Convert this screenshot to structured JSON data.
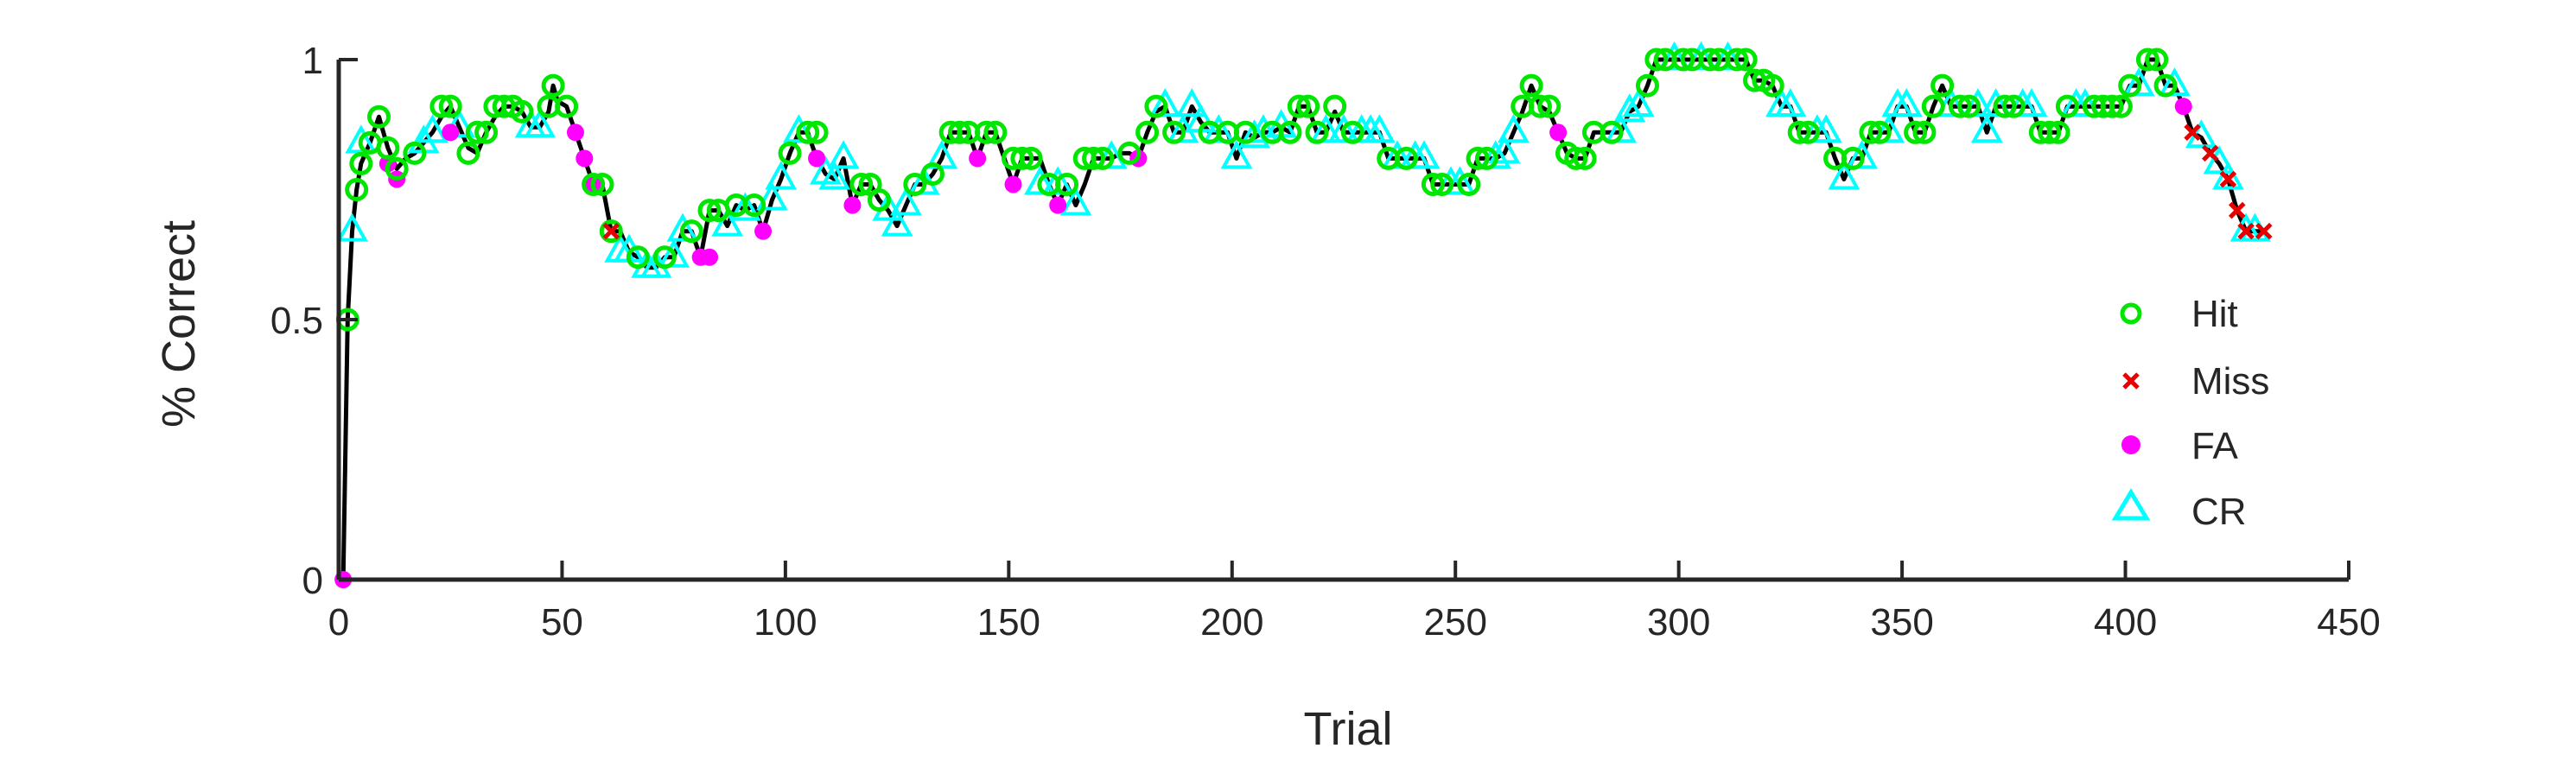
{
  "chart_data": {
    "type": "line",
    "xlabel": "Trial",
    "ylabel": "% Correct",
    "xlim": [
      0,
      450
    ],
    "ylim": [
      0,
      1
    ],
    "xticks": [
      "0",
      "50",
      "100",
      "150",
      "200",
      "250",
      "300",
      "350",
      "400",
      "450"
    ],
    "yticks": [
      "0",
      "0.5",
      "1"
    ],
    "grid": false,
    "legend_position": "right",
    "line_color": "#000000",
    "series": [
      {
        "name": "Hit",
        "marker": "open-circle",
        "color": "#00e600"
      },
      {
        "name": "Miss",
        "marker": "x",
        "color": "#e60000"
      },
      {
        "name": "FA",
        "marker": "filled-circle",
        "color": "#ff00ff"
      },
      {
        "name": "CR",
        "marker": "open-triangle",
        "color": "#00ffff"
      }
    ],
    "curve": [
      [
        1,
        0
      ],
      [
        2,
        0.5
      ],
      [
        3,
        0.67
      ],
      [
        4,
        0.75
      ],
      [
        5,
        0.8
      ],
      [
        7,
        0.84
      ],
      [
        9,
        0.89
      ],
      [
        11,
        0.83
      ],
      [
        13,
        0.79
      ],
      [
        15,
        0.81
      ],
      [
        17,
        0.82
      ],
      [
        19,
        0.84
      ],
      [
        21,
        0.86
      ],
      [
        23,
        0.89
      ],
      [
        25,
        0.91
      ],
      [
        27,
        0.87
      ],
      [
        29,
        0.83
      ],
      [
        31,
        0.82
      ],
      [
        33,
        0.86
      ],
      [
        35,
        0.89
      ],
      [
        37,
        0.91
      ],
      [
        39,
        0.91
      ],
      [
        41,
        0.9
      ],
      [
        43,
        0.87
      ],
      [
        45,
        0.87
      ],
      [
        47,
        0.9
      ],
      [
        48,
        0.95
      ],
      [
        49,
        0.92
      ],
      [
        51,
        0.91
      ],
      [
        53,
        0.86
      ],
      [
        55,
        0.81
      ],
      [
        57,
        0.76
      ],
      [
        59,
        0.76
      ],
      [
        61,
        0.67
      ],
      [
        63,
        0.67
      ],
      [
        65,
        0.63
      ],
      [
        67,
        0.62
      ],
      [
        69,
        0.6
      ],
      [
        71,
        0.6
      ],
      [
        73,
        0.62
      ],
      [
        75,
        0.62
      ],
      [
        77,
        0.67
      ],
      [
        79,
        0.67
      ],
      [
        81,
        0.62
      ],
      [
        83,
        0.71
      ],
      [
        85,
        0.71
      ],
      [
        87,
        0.68
      ],
      [
        89,
        0.72
      ],
      [
        91,
        0.71
      ],
      [
        93,
        0.72
      ],
      [
        95,
        0.67
      ],
      [
        97,
        0.73
      ],
      [
        99,
        0.77
      ],
      [
        101,
        0.82
      ],
      [
        103,
        0.86
      ],
      [
        105,
        0.86
      ],
      [
        107,
        0.81
      ],
      [
        109,
        0.78
      ],
      [
        111,
        0.77
      ],
      [
        113,
        0.81
      ],
      [
        115,
        0.72
      ],
      [
        117,
        0.76
      ],
      [
        119,
        0.76
      ],
      [
        121,
        0.73
      ],
      [
        123,
        0.71
      ],
      [
        125,
        0.68
      ],
      [
        127,
        0.72
      ],
      [
        129,
        0.76
      ],
      [
        131,
        0.76
      ],
      [
        133,
        0.78
      ],
      [
        135,
        0.81
      ],
      [
        137,
        0.86
      ],
      [
        139,
        0.86
      ],
      [
        141,
        0.86
      ],
      [
        143,
        0.81
      ],
      [
        145,
        0.86
      ],
      [
        147,
        0.86
      ],
      [
        149,
        0.81
      ],
      [
        151,
        0.76
      ],
      [
        153,
        0.81
      ],
      [
        155,
        0.81
      ],
      [
        157,
        0.81
      ],
      [
        159,
        0.76
      ],
      [
        161,
        0.72
      ],
      [
        163,
        0.76
      ],
      [
        165,
        0.72
      ],
      [
        167,
        0.76
      ],
      [
        169,
        0.81
      ],
      [
        171,
        0.81
      ],
      [
        173,
        0.81
      ],
      [
        175,
        0.82
      ],
      [
        177,
        0.82
      ],
      [
        179,
        0.81
      ],
      [
        181,
        0.86
      ],
      [
        183,
        0.9
      ],
      [
        185,
        0.91
      ],
      [
        187,
        0.86
      ],
      [
        189,
        0.86
      ],
      [
        191,
        0.91
      ],
      [
        193,
        0.88
      ],
      [
        195,
        0.86
      ],
      [
        197,
        0.86
      ],
      [
        199,
        0.86
      ],
      [
        201,
        0.81
      ],
      [
        203,
        0.86
      ],
      [
        205,
        0.85
      ],
      [
        207,
        0.86
      ],
      [
        209,
        0.86
      ],
      [
        211,
        0.87
      ],
      [
        213,
        0.86
      ],
      [
        215,
        0.91
      ],
      [
        217,
        0.91
      ],
      [
        219,
        0.86
      ],
      [
        221,
        0.86
      ],
      [
        223,
        0.9
      ],
      [
        225,
        0.86
      ],
      [
        227,
        0.86
      ],
      [
        229,
        0.86
      ],
      [
        231,
        0.86
      ],
      [
        233,
        0.86
      ],
      [
        235,
        0.81
      ],
      [
        237,
        0.81
      ],
      [
        239,
        0.81
      ],
      [
        241,
        0.81
      ],
      [
        243,
        0.81
      ],
      [
        245,
        0.76
      ],
      [
        247,
        0.76
      ],
      [
        249,
        0.76
      ],
      [
        251,
        0.76
      ],
      [
        253,
        0.76
      ],
      [
        255,
        0.81
      ],
      [
        257,
        0.81
      ],
      [
        259,
        0.81
      ],
      [
        261,
        0.82
      ],
      [
        263,
        0.86
      ],
      [
        265,
        0.9
      ],
      [
        267,
        0.95
      ],
      [
        269,
        0.91
      ],
      [
        271,
        0.9
      ],
      [
        273,
        0.86
      ],
      [
        275,
        0.82
      ],
      [
        277,
        0.81
      ],
      [
        279,
        0.81
      ],
      [
        281,
        0.86
      ],
      [
        283,
        0.86
      ],
      [
        285,
        0.86
      ],
      [
        287,
        0.86
      ],
      [
        289,
        0.9
      ],
      [
        291,
        0.91
      ],
      [
        293,
        0.95
      ],
      [
        295,
        1.0
      ],
      [
        297,
        1.0
      ],
      [
        299,
        1.0
      ],
      [
        301,
        1.0
      ],
      [
        303,
        1.0
      ],
      [
        305,
        1.0
      ],
      [
        307,
        1.0
      ],
      [
        309,
        1.0
      ],
      [
        311,
        1.0
      ],
      [
        313,
        1.0
      ],
      [
        315,
        1.0
      ],
      [
        317,
        0.96
      ],
      [
        319,
        0.96
      ],
      [
        321,
        0.95
      ],
      [
        323,
        0.91
      ],
      [
        325,
        0.91
      ],
      [
        327,
        0.86
      ],
      [
        329,
        0.86
      ],
      [
        331,
        0.86
      ],
      [
        333,
        0.86
      ],
      [
        335,
        0.81
      ],
      [
        337,
        0.77
      ],
      [
        339,
        0.81
      ],
      [
        341,
        0.81
      ],
      [
        343,
        0.86
      ],
      [
        345,
        0.86
      ],
      [
        347,
        0.86
      ],
      [
        349,
        0.91
      ],
      [
        351,
        0.91
      ],
      [
        353,
        0.86
      ],
      [
        355,
        0.86
      ],
      [
        357,
        0.91
      ],
      [
        359,
        0.95
      ],
      [
        361,
        0.91
      ],
      [
        363,
        0.91
      ],
      [
        365,
        0.91
      ],
      [
        367,
        0.91
      ],
      [
        369,
        0.86
      ],
      [
        371,
        0.91
      ],
      [
        373,
        0.91
      ],
      [
        375,
        0.91
      ],
      [
        377,
        0.91
      ],
      [
        379,
        0.91
      ],
      [
        381,
        0.86
      ],
      [
        383,
        0.86
      ],
      [
        385,
        0.86
      ],
      [
        387,
        0.91
      ],
      [
        389,
        0.91
      ],
      [
        391,
        0.91
      ],
      [
        393,
        0.91
      ],
      [
        395,
        0.91
      ],
      [
        397,
        0.91
      ],
      [
        399,
        0.91
      ],
      [
        401,
        0.95
      ],
      [
        403,
        0.95
      ],
      [
        405,
        1.0
      ],
      [
        407,
        1.0
      ],
      [
        409,
        0.95
      ],
      [
        411,
        0.95
      ],
      [
        413,
        0.91
      ],
      [
        415,
        0.86
      ],
      [
        417,
        0.85
      ],
      [
        419,
        0.82
      ],
      [
        421,
        0.8
      ],
      [
        423,
        0.77
      ],
      [
        425,
        0.71
      ],
      [
        427,
        0.67
      ],
      [
        429,
        0.67
      ],
      [
        431,
        0.67
      ]
    ],
    "hit_points": [
      [
        2,
        0.5
      ],
      [
        4,
        0.75
      ],
      [
        5,
        0.8
      ],
      [
        7,
        0.84
      ],
      [
        9,
        0.89
      ],
      [
        11,
        0.83
      ],
      [
        13,
        0.79
      ],
      [
        17,
        0.82
      ],
      [
        23,
        0.91
      ],
      [
        25,
        0.91
      ],
      [
        29,
        0.82
      ],
      [
        31,
        0.86
      ],
      [
        33,
        0.86
      ],
      [
        35,
        0.91
      ],
      [
        37,
        0.91
      ],
      [
        39,
        0.91
      ],
      [
        41,
        0.9
      ],
      [
        47,
        0.91
      ],
      [
        48,
        0.95
      ],
      [
        51,
        0.91
      ],
      [
        57,
        0.76
      ],
      [
        59,
        0.76
      ],
      [
        61,
        0.67
      ],
      [
        67,
        0.62
      ],
      [
        73,
        0.62
      ],
      [
        79,
        0.67
      ],
      [
        83,
        0.71
      ],
      [
        85,
        0.71
      ],
      [
        89,
        0.72
      ],
      [
        93,
        0.72
      ],
      [
        101,
        0.82
      ],
      [
        105,
        0.86
      ],
      [
        107,
        0.86
      ],
      [
        117,
        0.76
      ],
      [
        119,
        0.76
      ],
      [
        121,
        0.73
      ],
      [
        129,
        0.76
      ],
      [
        133,
        0.78
      ],
      [
        137,
        0.86
      ],
      [
        139,
        0.86
      ],
      [
        141,
        0.86
      ],
      [
        145,
        0.86
      ],
      [
        147,
        0.86
      ],
      [
        151,
        0.81
      ],
      [
        153,
        0.81
      ],
      [
        155,
        0.81
      ],
      [
        159,
        0.76
      ],
      [
        163,
        0.76
      ],
      [
        167,
        0.81
      ],
      [
        169,
        0.81
      ],
      [
        171,
        0.81
      ],
      [
        177,
        0.82
      ],
      [
        181,
        0.86
      ],
      [
        183,
        0.91
      ],
      [
        187,
        0.86
      ],
      [
        195,
        0.86
      ],
      [
        199,
        0.86
      ],
      [
        203,
        0.86
      ],
      [
        209,
        0.86
      ],
      [
        213,
        0.86
      ],
      [
        215,
        0.91
      ],
      [
        217,
        0.91
      ],
      [
        219,
        0.86
      ],
      [
        223,
        0.91
      ],
      [
        227,
        0.86
      ],
      [
        235,
        0.81
      ],
      [
        239,
        0.81
      ],
      [
        245,
        0.76
      ],
      [
        247,
        0.76
      ],
      [
        253,
        0.76
      ],
      [
        255,
        0.81
      ],
      [
        257,
        0.81
      ],
      [
        265,
        0.91
      ],
      [
        267,
        0.95
      ],
      [
        269,
        0.91
      ],
      [
        271,
        0.91
      ],
      [
        275,
        0.82
      ],
      [
        277,
        0.81
      ],
      [
        279,
        0.81
      ],
      [
        281,
        0.86
      ],
      [
        285,
        0.86
      ],
      [
        293,
        0.95
      ],
      [
        295,
        1.0
      ],
      [
        297,
        1.0
      ],
      [
        301,
        1.0
      ],
      [
        303,
        1.0
      ],
      [
        307,
        1.0
      ],
      [
        309,
        1.0
      ],
      [
        313,
        1.0
      ],
      [
        315,
        1.0
      ],
      [
        317,
        0.96
      ],
      [
        319,
        0.96
      ],
      [
        321,
        0.95
      ],
      [
        327,
        0.86
      ],
      [
        329,
        0.86
      ],
      [
        335,
        0.81
      ],
      [
        339,
        0.81
      ],
      [
        343,
        0.86
      ],
      [
        345,
        0.86
      ],
      [
        353,
        0.86
      ],
      [
        355,
        0.86
      ],
      [
        357,
        0.91
      ],
      [
        359,
        0.95
      ],
      [
        363,
        0.91
      ],
      [
        365,
        0.91
      ],
      [
        373,
        0.91
      ],
      [
        375,
        0.91
      ],
      [
        381,
        0.86
      ],
      [
        383,
        0.86
      ],
      [
        385,
        0.86
      ],
      [
        387,
        0.91
      ],
      [
        393,
        0.91
      ],
      [
        395,
        0.91
      ],
      [
        397,
        0.91
      ],
      [
        399,
        0.91
      ],
      [
        401,
        0.95
      ],
      [
        405,
        1.0
      ],
      [
        407,
        1.0
      ],
      [
        409,
        0.95
      ]
    ],
    "miss_points": [
      [
        61,
        0.67
      ],
      [
        415,
        0.86
      ],
      [
        419,
        0.82
      ],
      [
        423,
        0.77
      ],
      [
        425,
        0.71
      ],
      [
        427,
        0.67
      ],
      [
        431,
        0.67
      ]
    ],
    "fa_points": [
      [
        1,
        0
      ],
      [
        11,
        0.8
      ],
      [
        13,
        0.77
      ],
      [
        25,
        0.86
      ],
      [
        53,
        0.86
      ],
      [
        55,
        0.81
      ],
      [
        57,
        0.76
      ],
      [
        81,
        0.62
      ],
      [
        83,
        0.62
      ],
      [
        95,
        0.67
      ],
      [
        107,
        0.81
      ],
      [
        115,
        0.72
      ],
      [
        143,
        0.81
      ],
      [
        151,
        0.76
      ],
      [
        161,
        0.72
      ],
      [
        179,
        0.81
      ],
      [
        273,
        0.86
      ],
      [
        413,
        0.91
      ]
    ],
    "cr_points": [
      [
        3,
        0.67
      ],
      [
        5,
        0.84
      ],
      [
        19,
        0.84
      ],
      [
        21,
        0.86
      ],
      [
        27,
        0.87
      ],
      [
        43,
        0.87
      ],
      [
        45,
        0.87
      ],
      [
        63,
        0.63
      ],
      [
        65,
        0.63
      ],
      [
        69,
        0.6
      ],
      [
        71,
        0.6
      ],
      [
        75,
        0.62
      ],
      [
        77,
        0.67
      ],
      [
        87,
        0.68
      ],
      [
        91,
        0.71
      ],
      [
        97,
        0.73
      ],
      [
        99,
        0.77
      ],
      [
        103,
        0.86
      ],
      [
        109,
        0.78
      ],
      [
        111,
        0.77
      ],
      [
        113,
        0.81
      ],
      [
        123,
        0.71
      ],
      [
        125,
        0.68
      ],
      [
        127,
        0.72
      ],
      [
        131,
        0.76
      ],
      [
        135,
        0.81
      ],
      [
        157,
        0.76
      ],
      [
        161,
        0.76
      ],
      [
        165,
        0.72
      ],
      [
        173,
        0.81
      ],
      [
        185,
        0.91
      ],
      [
        189,
        0.86
      ],
      [
        191,
        0.91
      ],
      [
        193,
        0.88
      ],
      [
        197,
        0.86
      ],
      [
        201,
        0.81
      ],
      [
        205,
        0.85
      ],
      [
        207,
        0.86
      ],
      [
        211,
        0.87
      ],
      [
        221,
        0.86
      ],
      [
        225,
        0.86
      ],
      [
        229,
        0.86
      ],
      [
        231,
        0.86
      ],
      [
        233,
        0.86
      ],
      [
        237,
        0.81
      ],
      [
        241,
        0.81
      ],
      [
        243,
        0.81
      ],
      [
        249,
        0.76
      ],
      [
        251,
        0.76
      ],
      [
        259,
        0.81
      ],
      [
        261,
        0.82
      ],
      [
        263,
        0.86
      ],
      [
        287,
        0.86
      ],
      [
        289,
        0.9
      ],
      [
        291,
        0.91
      ],
      [
        299,
        1.0
      ],
      [
        305,
        1.0
      ],
      [
        311,
        1.0
      ],
      [
        323,
        0.91
      ],
      [
        325,
        0.91
      ],
      [
        331,
        0.86
      ],
      [
        333,
        0.86
      ],
      [
        337,
        0.77
      ],
      [
        341,
        0.81
      ],
      [
        347,
        0.86
      ],
      [
        349,
        0.91
      ],
      [
        351,
        0.91
      ],
      [
        361,
        0.91
      ],
      [
        367,
        0.91
      ],
      [
        369,
        0.86
      ],
      [
        371,
        0.91
      ],
      [
        377,
        0.91
      ],
      [
        379,
        0.91
      ],
      [
        389,
        0.91
      ],
      [
        391,
        0.91
      ],
      [
        403,
        0.95
      ],
      [
        411,
        0.95
      ],
      [
        417,
        0.85
      ],
      [
        421,
        0.8
      ],
      [
        423,
        0.77
      ],
      [
        427,
        0.67
      ],
      [
        429,
        0.67
      ]
    ]
  }
}
